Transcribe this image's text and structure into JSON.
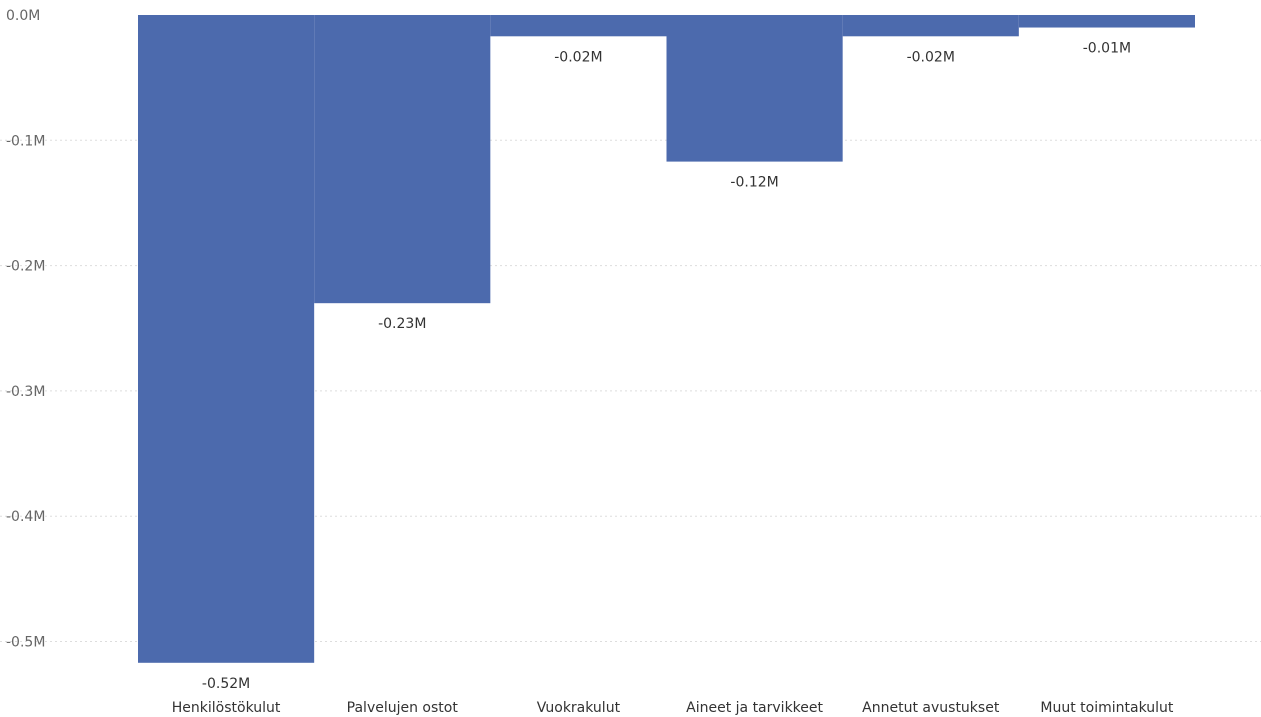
{
  "chart_data": {
    "type": "bar",
    "subtype": "waterfall",
    "categories": [
      "Henkilöstökulut",
      "Palvelujen ostot",
      "Vuokrakulut",
      "Aineet ja tarvikkeet",
      "Annetut avustukset",
      "Muut toimintakulut"
    ],
    "values": [
      -0.52,
      -0.23,
      -0.02,
      -0.12,
      -0.02,
      -0.01
    ],
    "bar_bases": [
      0.0,
      -0.23,
      0.0,
      0.0,
      0.0,
      0.0
    ],
    "bar_tops": [
      -0.517,
      0.0,
      -0.017,
      -0.117,
      -0.017,
      -0.01
    ],
    "data_labels": [
      "-0.52M",
      "-0.23M",
      "-0.02M",
      "-0.12M",
      "-0.02M",
      "-0.01M"
    ],
    "yticks": [
      0.0,
      -0.1,
      -0.2,
      -0.3,
      -0.4,
      -0.5
    ],
    "ytick_labels": [
      "0.0M",
      "-0.1M",
      "-0.2M",
      "-0.3M",
      "-0.4M",
      "-0.5M"
    ],
    "ylim": [
      -0.52,
      0.0
    ],
    "grid": true,
    "legend": "none",
    "bar_color": "#4c6aad",
    "title": "",
    "xlabel": "",
    "ylabel": ""
  }
}
